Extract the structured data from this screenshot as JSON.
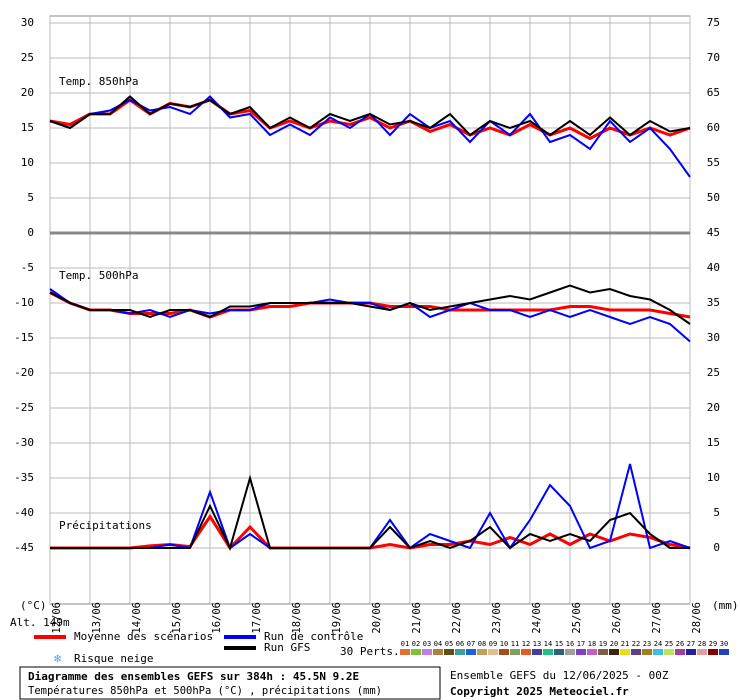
{
  "chart_data": {
    "type": "line",
    "x": [
      0,
      0.5,
      1,
      1.5,
      2,
      2.5,
      3,
      3.5,
      4,
      4.5,
      5,
      5.5,
      6,
      6.5,
      7,
      7.5,
      8,
      8.5,
      9,
      9.5,
      10,
      10.5,
      11,
      11.5,
      12,
      12.5,
      13,
      13.5,
      14,
      14.5,
      15,
      15.5,
      16
    ],
    "xlim": [
      0,
      16
    ],
    "xticks": [
      {
        "value": 0,
        "label": "12/06"
      },
      {
        "value": 1,
        "label": "13/06"
      },
      {
        "value": 2,
        "label": "14/06"
      },
      {
        "value": 3,
        "label": "15/06"
      },
      {
        "value": 4,
        "label": "16/06"
      },
      {
        "value": 5,
        "label": "17/06"
      },
      {
        "value": 6,
        "label": "18/06"
      },
      {
        "value": 7,
        "label": "19/06"
      },
      {
        "value": 8,
        "label": "20/06"
      },
      {
        "value": 9,
        "label": "21/06"
      },
      {
        "value": 10,
        "label": "22/06"
      },
      {
        "value": 11,
        "label": "23/06"
      },
      {
        "value": 12,
        "label": "24/06"
      },
      {
        "value": 13,
        "label": "25/06"
      },
      {
        "value": 14,
        "label": "26/06"
      },
      {
        "value": 15,
        "label": "27/06"
      },
      {
        "value": 16,
        "label": "28/06"
      }
    ],
    "ylim": [
      -53,
      31
    ],
    "yticks": [
      30,
      25,
      20,
      15,
      10,
      5,
      0,
      -5,
      -10,
      -15,
      -20,
      -25,
      -30,
      -35,
      -40,
      -45
    ],
    "y2lim": [
      -8,
      76
    ],
    "y2ticks": [
      75,
      70,
      65,
      60,
      55,
      50,
      45,
      40,
      35,
      30,
      25,
      20,
      15,
      10,
      5,
      0
    ],
    "ylabel": "(°C)",
    "y2label": "(mm)",
    "grid": true,
    "altitude": "Alt. 149m",
    "panels": [
      {
        "label": "Temp. 850hPa",
        "series": [
          {
            "name": "Moyenne des scénarios",
            "color": "#ff0000",
            "values": [
              16,
              15.5,
              17,
              17,
              19,
              17,
              18.5,
              18,
              19,
              17,
              17.5,
              15,
              16,
              15,
              16,
              15.5,
              16.5,
              15,
              16,
              14.5,
              15.5,
              14,
              15,
              14,
              15.5,
              14,
              15,
              13.5,
              15,
              14,
              15,
              14,
              15
            ]
          },
          {
            "name": "Run de contrôle",
            "color": "#0000ff",
            "values": [
              16,
              15,
              17,
              17.5,
              19,
              17.5,
              18,
              17,
              19.5,
              16.5,
              17,
              14,
              15.5,
              14,
              16.5,
              15,
              17,
              14,
              17,
              15,
              16,
              13,
              16,
              14,
              17,
              13,
              14,
              12,
              16,
              13,
              15,
              12,
              8
            ]
          },
          {
            "name": "Run GFS",
            "color": "#000000",
            "values": [
              16,
              15,
              17,
              17,
              19.5,
              17,
              18.5,
              18,
              19,
              17,
              18,
              15,
              16.5,
              15,
              17,
              16,
              17,
              15.5,
              16,
              15,
              17,
              14,
              16,
              15,
              16,
              14,
              16,
              14,
              16.5,
              14,
              16,
              14.5,
              15
            ]
          }
        ]
      },
      {
        "label": "Temp. 500hPa",
        "series": [
          {
            "color": "#ff0000",
            "values": [
              -8.5,
              -10,
              -11,
              -11,
              -11.5,
              -11.5,
              -11.5,
              -11,
              -12,
              -11,
              -11,
              -10.5,
              -10.5,
              -10,
              -10,
              -10,
              -10,
              -10.5,
              -10.5,
              -10.5,
              -11,
              -11,
              -11,
              -11,
              -11,
              -11,
              -10.5,
              -10.5,
              -11,
              -11,
              -11,
              -11.5,
              -12
            ]
          },
          {
            "color": "#0000ff",
            "values": [
              -8,
              -10,
              -11,
              -11,
              -11.5,
              -11,
              -12,
              -11,
              -11.5,
              -11,
              -11,
              -10,
              -10,
              -10,
              -9.5,
              -10,
              -10,
              -11,
              -10,
              -12,
              -11,
              -10,
              -11,
              -11,
              -12,
              -11,
              -12,
              -11,
              -12,
              -13,
              -12,
              -13,
              -15.5
            ]
          },
          {
            "color": "#000000",
            "values": [
              -8.5,
              -10,
              -11,
              -11,
              -11,
              -12,
              -11,
              -11,
              -12,
              -10.5,
              -10.5,
              -10,
              -10,
              -10,
              -10,
              -10,
              -10.5,
              -11,
              -10,
              -11,
              -10.5,
              -10,
              -9.5,
              -9,
              -9.5,
              -8.5,
              -7.5,
              -8.5,
              -8,
              -9,
              -9.5,
              -11,
              -13
            ]
          }
        ]
      },
      {
        "label": "Précipitations",
        "axis": "y2",
        "series": [
          {
            "color": "#ff0000",
            "values": [
              0,
              0,
              0,
              0,
              0,
              0.3,
              0.5,
              0.2,
              4.5,
              0,
              3,
              0,
              0,
              0,
              0,
              0,
              0,
              0.5,
              0,
              0.5,
              0.5,
              1,
              0.5,
              1.5,
              0.5,
              2,
              0.5,
              2,
              1,
              2,
              1.5,
              0.5,
              0
            ]
          },
          {
            "color": "#0000ff",
            "values": [
              0,
              0,
              0,
              0,
              0,
              0,
              0.5,
              0,
              8,
              0,
              2,
              0,
              0,
              0,
              0,
              0,
              0,
              4,
              0,
              2,
              1,
              0,
              5,
              0,
              4,
              9,
              6,
              0,
              1,
              12,
              0,
              1,
              0
            ]
          },
          {
            "color": "#000000",
            "values": [
              0,
              0,
              0,
              0,
              0,
              0,
              0,
              0,
              6,
              0,
              10,
              0,
              0,
              0,
              0,
              0,
              0,
              3,
              0,
              1,
              0,
              1,
              3,
              0,
              2,
              1,
              2,
              1,
              4,
              5,
              2,
              0,
              0
            ]
          }
        ]
      }
    ],
    "snow_legend": "Risque neige",
    "perturbations": {
      "label": "30 Perts.",
      "items": [
        {
          "name": "01",
          "color": "#e07030"
        },
        {
          "name": "02",
          "color": "#80c040"
        },
        {
          "name": "03",
          "color": "#c080e0"
        },
        {
          "name": "04",
          "color": "#b08040"
        },
        {
          "name": "05",
          "color": "#605020"
        },
        {
          "name": "06",
          "color": "#40a0a0"
        },
        {
          "name": "07",
          "color": "#2060e0"
        },
        {
          "name": "08",
          "color": "#c0a060"
        },
        {
          "name": "09",
          "color": "#e0c090"
        },
        {
          "name": "10",
          "color": "#a05020"
        },
        {
          "name": "11",
          "color": "#80a060"
        },
        {
          "name": "12",
          "color": "#e06020"
        },
        {
          "name": "13",
          "color": "#4040a0"
        },
        {
          "name": "14",
          "color": "#20c080"
        },
        {
          "name": "15",
          "color": "#306080"
        },
        {
          "name": "16",
          "color": "#a0a0a0"
        },
        {
          "name": "17",
          "color": "#8040c0"
        },
        {
          "name": "18",
          "color": "#c060c0"
        },
        {
          "name": "19",
          "color": "#806040"
        },
        {
          "name": "20",
          "color": "#402010"
        },
        {
          "name": "21",
          "color": "#e0e020"
        },
        {
          "name": "22",
          "color": "#604080"
        },
        {
          "name": "23",
          "color": "#a08020"
        },
        {
          "name": "24",
          "color": "#40c0e0"
        },
        {
          "name": "25",
          "color": "#c0e060"
        },
        {
          "name": "26",
          "color": "#a040a0"
        },
        {
          "name": "27",
          "color": "#2020a0"
        },
        {
          "name": "28",
          "color": "#e0a0a0"
        },
        {
          "name": "29",
          "color": "#800000"
        },
        {
          "name": "30",
          "color": "#2040c0"
        }
      ]
    },
    "title": "Diagramme des ensembles GEFS sur 384h : 45.5N 9.2E",
    "subtitle": "Températures 850hPa et 500hPa (°C) , précipitations (mm)",
    "run_info": "Ensemble GEFS du 12/06/2025 - 00Z",
    "copyright": "Copyright 2025 Meteociel.fr"
  }
}
